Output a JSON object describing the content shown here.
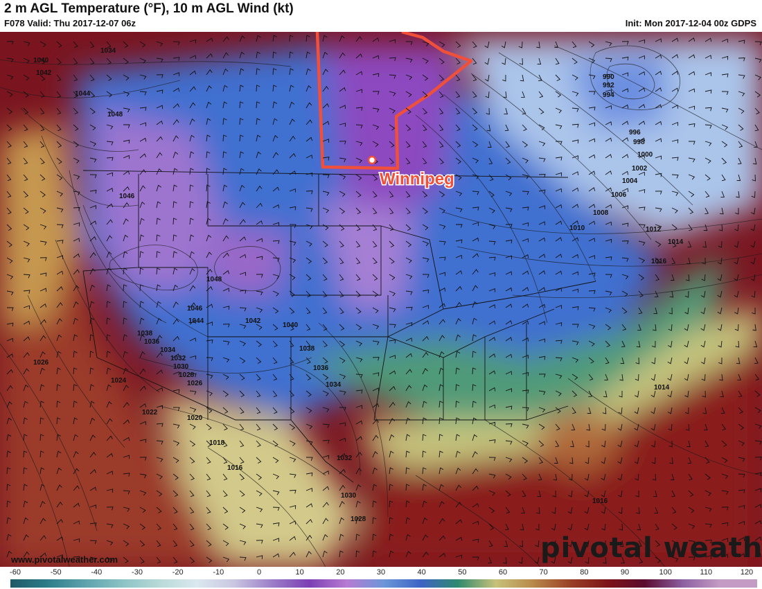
{
  "header": {
    "title": "2 m AGL Temperature (°F), 10 m AGL Wind (kt)",
    "valid": "F078 Valid: Thu 2017-12-07 06z",
    "init": "Init: Mon 2017-12-04 00z GDPS"
  },
  "map": {
    "city_label": "Winnipeg",
    "highlight_color": "#f0503a",
    "pressure_labels": [
      "1034",
      "1040",
      "1042",
      "1044",
      "1048",
      "1046",
      "1048",
      "1046",
      "1044",
      "1042",
      "1040",
      "1038",
      "1036",
      "1034",
      "1032",
      "1030",
      "1028",
      "1026",
      "1026",
      "1024",
      "1022",
      "1020",
      "1018",
      "1016",
      "1038",
      "1036",
      "1034",
      "1032",
      "1030",
      "1028",
      "990",
      "992",
      "994",
      "996",
      "998",
      "1000",
      "1002",
      "1004",
      "1006",
      "1008",
      "1010",
      "1012",
      "1014",
      "1016",
      "1014",
      "1016"
    ]
  },
  "watermark": "pivotal weather",
  "source_url": "www.pivotalweather.com",
  "colorbar": {
    "ticks": [
      "-60",
      "-50",
      "-40",
      "-30",
      "-20",
      "-10",
      "0",
      "10",
      "20",
      "30",
      "40",
      "50",
      "60",
      "70",
      "80",
      "90",
      "100",
      "110",
      "120"
    ],
    "colors": [
      "#1f5a66",
      "#2d7d8a",
      "#5fa3ad",
      "#8cc3c5",
      "#b9dad8",
      "#dbe8ef",
      "#c9c6e0",
      "#9c7ec9",
      "#7c3fb3",
      "#b77bd3",
      "#6c97d8",
      "#3d63c5",
      "#2f8a6d",
      "#c7c27a",
      "#b8894a",
      "#9a4027",
      "#7d1418",
      "#5b0a2e",
      "#8b5ea0",
      "#c49bc4"
    ]
  }
}
